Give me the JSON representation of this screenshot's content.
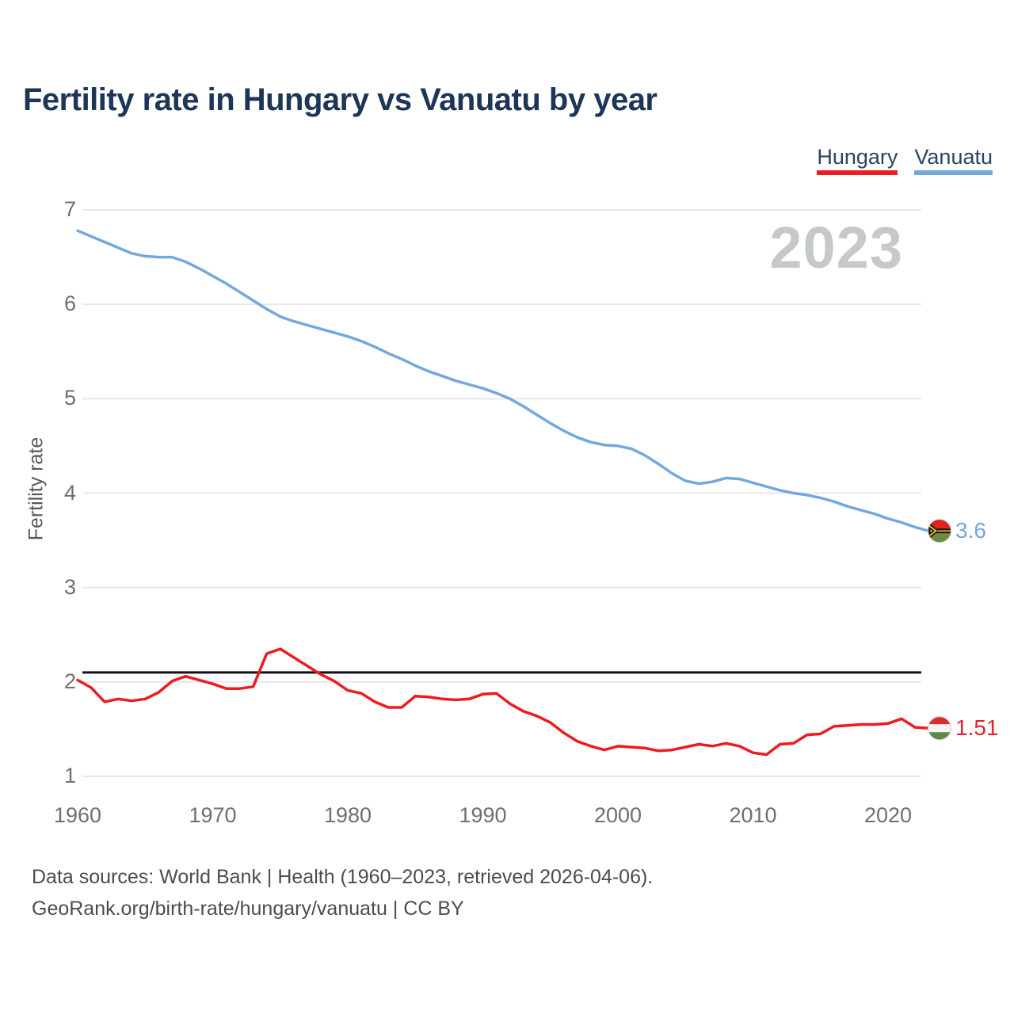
{
  "title": "Fertility rate in Hungary vs Vanuatu by year",
  "watermark": "2023",
  "legend": {
    "items": [
      {
        "label": "Hungary",
        "color": "#ee1b20"
      },
      {
        "label": "Vanuatu",
        "color": "#73a8dd"
      }
    ]
  },
  "y_axis": {
    "label": "Fertility rate",
    "ticks": [
      "7",
      "6",
      "5",
      "4",
      "3",
      "2",
      "1"
    ]
  },
  "x_axis": {
    "ticks": [
      "1960",
      "1970",
      "1980",
      "1990",
      "2000",
      "2010",
      "2020"
    ]
  },
  "reference_line": {
    "value": 2.1,
    "color": "#111111"
  },
  "end_labels": {
    "vanuatu": {
      "text": "3.6",
      "color": "#73a8dd",
      "flag": "vanuatu-flag"
    },
    "hungary": {
      "text": "1.51",
      "color": "#e8212b",
      "flag": "hungary-flag"
    }
  },
  "footer": {
    "line1": "Data sources: World Bank | Health (1960–2023, retrieved 2026-04-06).",
    "line2": "GeoRank.org/birth-rate/hungary/vanuatu | CC BY"
  },
  "chart_data": {
    "type": "line",
    "title": "Fertility rate in Hungary vs Vanuatu by year",
    "xlabel": "",
    "ylabel": "Fertility rate",
    "ylim": [
      1,
      7
    ],
    "xlim": [
      1960,
      2023
    ],
    "grid": "horizontal",
    "legend_position": "top-right",
    "annotations": {
      "horizontal_reference_line": 2.1,
      "watermark_year": "2023",
      "series_end_value_labels": {
        "Vanuatu": "3.6",
        "Hungary": "1.51"
      }
    },
    "x": [
      1960,
      1961,
      1962,
      1963,
      1964,
      1965,
      1966,
      1967,
      1968,
      1969,
      1970,
      1971,
      1972,
      1973,
      1974,
      1975,
      1976,
      1977,
      1978,
      1979,
      1980,
      1981,
      1982,
      1983,
      1984,
      1985,
      1986,
      1987,
      1988,
      1989,
      1990,
      1991,
      1992,
      1993,
      1994,
      1995,
      1996,
      1997,
      1998,
      1999,
      2000,
      2001,
      2002,
      2003,
      2004,
      2005,
      2006,
      2007,
      2008,
      2009,
      2010,
      2011,
      2012,
      2013,
      2014,
      2015,
      2016,
      2017,
      2018,
      2019,
      2020,
      2021,
      2022,
      2023
    ],
    "series": [
      {
        "name": "Hungary",
        "color": "#ee1b20",
        "values": [
          2.02,
          1.94,
          1.79,
          1.82,
          1.8,
          1.82,
          1.89,
          2.01,
          2.06,
          2.02,
          1.98,
          1.93,
          1.93,
          1.95,
          2.3,
          2.35,
          2.26,
          2.17,
          2.08,
          2.01,
          1.91,
          1.88,
          1.79,
          1.73,
          1.73,
          1.85,
          1.84,
          1.82,
          1.81,
          1.82,
          1.87,
          1.88,
          1.77,
          1.69,
          1.64,
          1.57,
          1.46,
          1.37,
          1.32,
          1.28,
          1.32,
          1.31,
          1.3,
          1.27,
          1.28,
          1.31,
          1.34,
          1.32,
          1.35,
          1.32,
          1.25,
          1.23,
          1.34,
          1.35,
          1.44,
          1.45,
          1.53,
          1.54,
          1.55,
          1.55,
          1.56,
          1.61,
          1.52,
          1.51
        ]
      },
      {
        "name": "Vanuatu",
        "color": "#73a8dd",
        "values": [
          6.78,
          6.72,
          6.66,
          6.6,
          6.54,
          6.51,
          6.5,
          6.5,
          6.45,
          6.38,
          6.3,
          6.22,
          6.13,
          6.04,
          5.95,
          5.87,
          5.82,
          5.78,
          5.74,
          5.7,
          5.66,
          5.61,
          5.55,
          5.48,
          5.42,
          5.35,
          5.29,
          5.24,
          5.19,
          5.15,
          5.11,
          5.06,
          5.0,
          4.92,
          4.83,
          4.74,
          4.66,
          4.59,
          4.54,
          4.51,
          4.5,
          4.47,
          4.4,
          4.31,
          4.21,
          4.13,
          4.1,
          4.12,
          4.16,
          4.15,
          4.11,
          4.07,
          4.03,
          4.0,
          3.98,
          3.95,
          3.91,
          3.86,
          3.82,
          3.78,
          3.73,
          3.69,
          3.64,
          3.6
        ]
      }
    ]
  }
}
